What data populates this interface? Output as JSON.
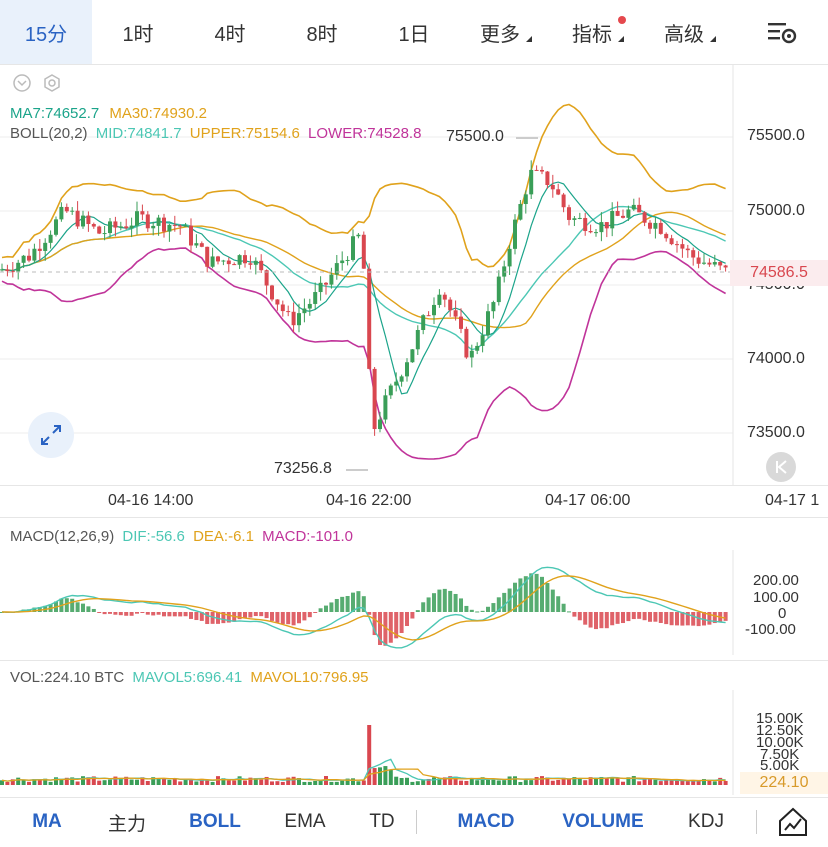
{
  "tabs": [
    {
      "label": "15分",
      "active": true
    },
    {
      "label": "1时"
    },
    {
      "label": "4时"
    },
    {
      "label": "8时"
    },
    {
      "label": "1日"
    },
    {
      "label": "更多"
    },
    {
      "label": "指标"
    },
    {
      "label": "高级"
    }
  ],
  "main_indicators": {
    "ma7": "MA7:74652.7",
    "ma30": "MA30:74930.2",
    "boll": "BOLL(20,2)",
    "mid": "MID:74841.7",
    "upper": "UPPER:75154.6",
    "lower": "LOWER:74528.8"
  },
  "price_axis": {
    "ticks": [
      "75500.0",
      "75000.0",
      "74500.0",
      "74000.0",
      "73500.0"
    ],
    "last_price": "74586.5",
    "high_marker": "75500.0",
    "low_marker": "73256.8"
  },
  "time_axis": {
    "labels": [
      "04-16 14:00",
      "04-16 22:00",
      "04-17 06:00",
      "04-17 1"
    ]
  },
  "macd": {
    "title": "MACD(12,26,9)",
    "dif": "DIF:-56.6",
    "dea": "DEA:-6.1",
    "macd": "MACD:-101.0",
    "ticks": [
      "200.00",
      "100.00",
      "0",
      "-100.00"
    ]
  },
  "volume": {
    "title": "VOL:224.10 BTC",
    "mavol5": "MAVOL5:696.41",
    "mavol10": "MAVOL10:796.95",
    "ticks": [
      "15.00K",
      "12.50K",
      "10.00K",
      "7.50K",
      "5.00K"
    ],
    "last": "224.10"
  },
  "bottom_bar": [
    {
      "label": "MA",
      "on": true
    },
    {
      "label": "主力"
    },
    {
      "label": "BOLL",
      "on": true
    },
    {
      "label": "EMA"
    },
    {
      "label": "TD"
    },
    {
      "label": "MACD",
      "on": true
    },
    {
      "label": "VOLUME",
      "on": true
    },
    {
      "label": "KDJ"
    }
  ],
  "colors": {
    "up": "#3a9e58",
    "down": "#d9474f",
    "ma7": "#1ba48a",
    "ma30": "#e0a21c",
    "boll_mid": "#4cc7b4",
    "boll_upper": "#e0a21c",
    "boll_lower": "#c0349a",
    "accent": "#2a63c3"
  }
}
